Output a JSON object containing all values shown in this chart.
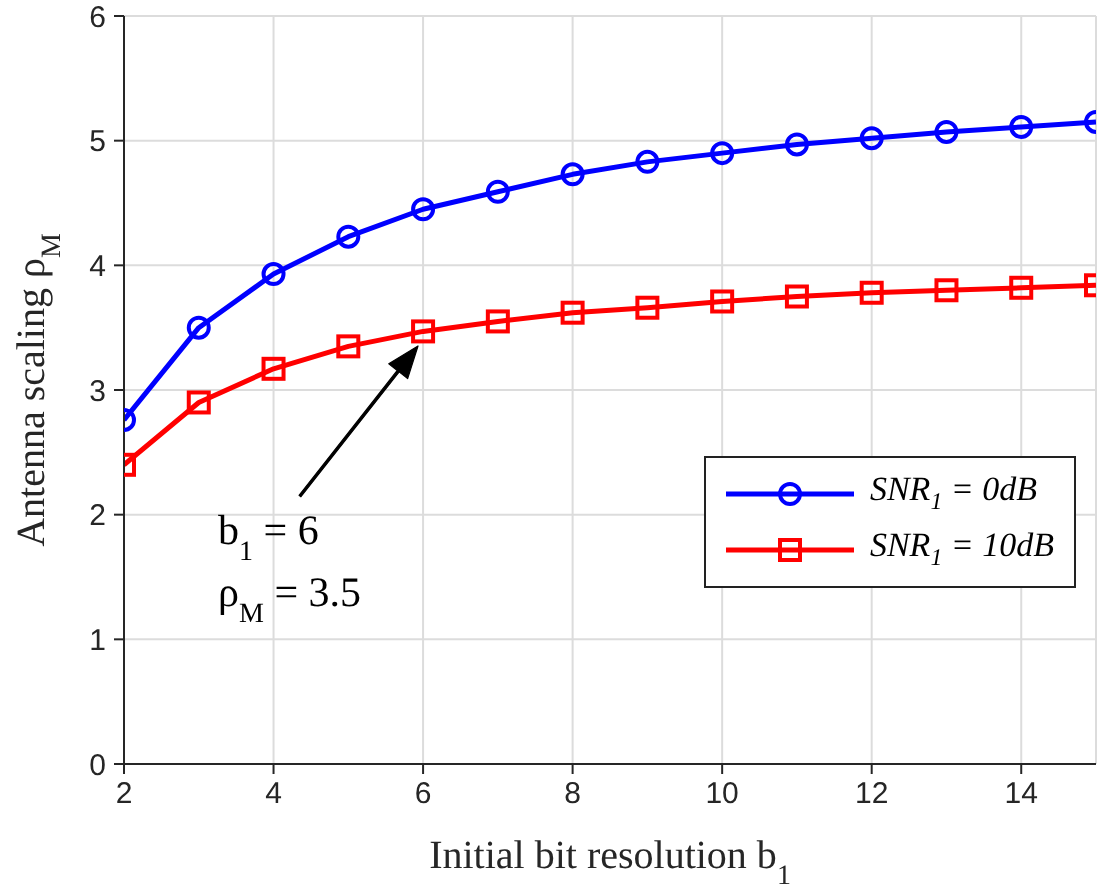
{
  "chart_data": {
    "type": "line",
    "xlabel": "Initial bit resolution b$_{1}$",
    "ylabel": "Antenna scaling ρ$_{M}$",
    "x": [
      2,
      3,
      4,
      5,
      6,
      7,
      8,
      9,
      10,
      11,
      12,
      13,
      14,
      15
    ],
    "series": [
      {
        "name": "SNR$_{1}$ = 0dB",
        "color": "#0000ff",
        "marker": "circle",
        "values": [
          2.76,
          3.5,
          3.93,
          4.23,
          4.45,
          4.59,
          4.73,
          4.83,
          4.9,
          4.97,
          5.02,
          5.07,
          5.11,
          5.15
        ]
      },
      {
        "name": "SNR$_{1}$ = 10dB",
        "color": "#ff0000",
        "marker": "square",
        "values": [
          2.4,
          2.9,
          3.17,
          3.35,
          3.47,
          3.55,
          3.62,
          3.66,
          3.71,
          3.75,
          3.78,
          3.8,
          3.82,
          3.84
        ]
      }
    ],
    "xlim": [
      2,
      15
    ],
    "xticks": [
      2,
      4,
      6,
      8,
      10,
      12,
      14
    ],
    "ylim": [
      0,
      6
    ],
    "yticks": [
      0,
      1,
      2,
      3,
      4,
      5,
      6
    ],
    "grid": true,
    "legend": "right",
    "line_style": "solid",
    "annotations": [
      "b$_{1}$ = 6\nρ$_{M}$ = 3.5"
    ]
  }
}
